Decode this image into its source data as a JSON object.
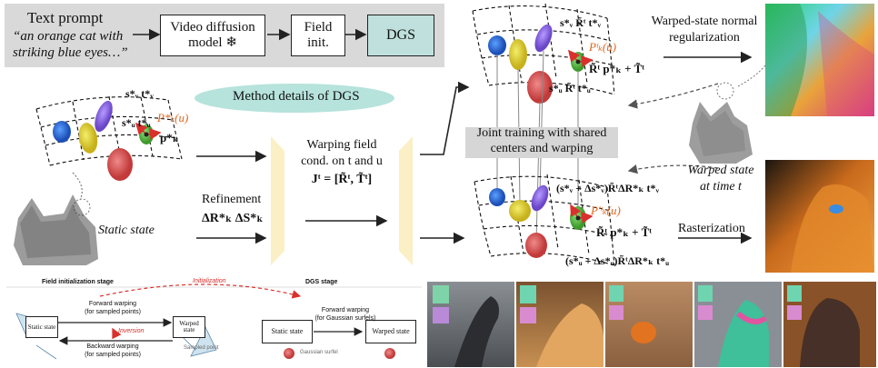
{
  "pipeline": {
    "text_prompt_label": "Text prompt",
    "prompt_line1": "“an orange cat with",
    "prompt_line2": "striking blue eyes…”",
    "video_diffusion_line1": "Video diffusion",
    "video_diffusion_line2": "model",
    "snowflake": "❄",
    "field_init_line1": "Field",
    "field_init_line2": "init.",
    "dgs": "DGS"
  },
  "method": {
    "banner": "Method details of DGS",
    "static_state": "Static state",
    "warping_line1": "Warping field",
    "warping_line2": "cond. on t and u",
    "warping_line3": "Jᵗ = [R̃ᵗ, T̃ᵗ]",
    "refinement_line1": "Refinement",
    "refinement_line2": "ΔR*ₖ  ΔS*ₖ",
    "joint_line1": "Joint training with shared",
    "joint_line2": "centers and warping",
    "warped_normal_line1": "Warped-state normal",
    "warped_normal_line2": "regularization",
    "warped_state_line1": "Warped state",
    "warped_state_line2": "at time t",
    "rasterization": "Rasterization",
    "label_sv_tv": "s*ᵥ t*ᵥ",
    "label_su_tu": "s*ᵤ t*ᵤ",
    "label_pk": "P*ₖ(u)",
    "label_pk_bold": "p*ₖ",
    "label_top_svRtv": "s*ᵥ R̃ᵗ t*ᵥ",
    "label_top_pk": "Pᵗₖ(u)",
    "label_top_Rp": "R̃ᵗ p*ₖ + T̃ᵗ",
    "label_top_suRtu": "s*ᵤ R̃ᵗ t*ᵤ",
    "label_bot_sv": "(s*ᵥ + Δs*ᵥ)R̃ᵗΔR*ₖ t*ᵥ",
    "label_bot_pk": "P'ᵗₖ(u)",
    "label_bot_Rp": "R̃ᵗ p*ₖ + T̃ᵗ",
    "label_bot_su": "(s*ᵤ + Δs*ᵤ)R̃ᵗΔR*ₖ t*ᵤ"
  },
  "stages": {
    "field_init_stage": "Field initialization stage",
    "dgs_stage": "DGS stage",
    "initialization": "Initialization",
    "static_state": "Static state",
    "warped_state": "Warped state",
    "forward_warping_line1": "Forward warping",
    "forward_warping_line2": "(for sampled points)",
    "inversion": "Inversion",
    "backward_warping_line1": "Backward warping",
    "backward_warping_line2": "(for sampled points)",
    "sampled_point": "Sampled point",
    "dgs_static_state": "Static state",
    "dgs_warped_state": "Warped state",
    "dgs_forward_line1": "Forward warping",
    "dgs_forward_line2": "(for Gaussian surfels)",
    "gaussian_surfel": "Gaussian surfel"
  },
  "colors": {
    "gray_panel": "#d9d9d9",
    "dgs_box": "#bfe0dc",
    "teal_banner": "#b6e3dc",
    "joint_box": "#d6d6d6",
    "warp_wedge": "#fbefc6",
    "orange_label": "#e0651c",
    "red_dash": "#d9302c"
  }
}
